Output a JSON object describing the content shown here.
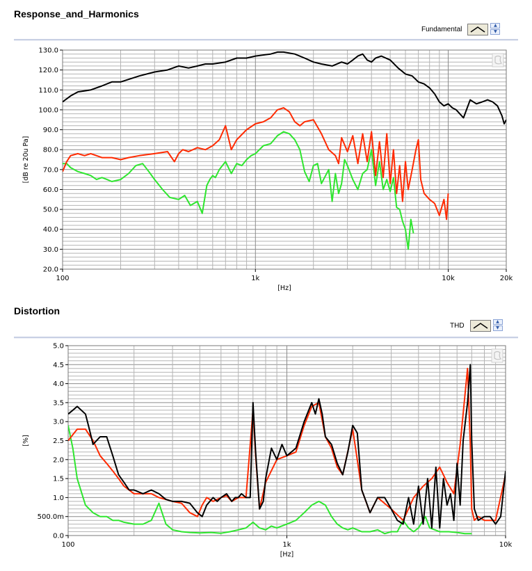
{
  "colors": {
    "black": "#000000",
    "red": "#ff2a00",
    "green": "#2ee62e",
    "grid_major": "#8c8c8c",
    "grid_minor": "#b4b4b4"
  },
  "panels": [
    {
      "title": "Response_and_Harmonics",
      "legend_label": "Fundamental",
      "icon": "line-style-icon"
    },
    {
      "title": "Distortion",
      "legend_label": "THD",
      "icon": "line-style-icon"
    }
  ],
  "chart_data": [
    {
      "type": "line",
      "title": "Response_and_Harmonics",
      "xlabel": "[Hz]",
      "ylabel": "[dB re 20u Pa]",
      "x_scale": "log",
      "xlim": [
        100,
        20000
      ],
      "ylim": [
        20,
        130
      ],
      "x_ticks": [
        100,
        1000,
        10000,
        20000
      ],
      "x_tick_labels": [
        "100",
        "1k",
        "10k",
        "20k"
      ],
      "y_ticks": [
        20,
        30,
        40,
        50,
        60,
        70,
        80,
        90,
        100,
        110,
        120,
        130
      ],
      "y_tick_labels": [
        "20.0",
        "30.0",
        "40.0",
        "50.0",
        "60.0",
        "70.0",
        "80.0",
        "90.0",
        "100.0",
        "110.0",
        "120.0",
        "130.0"
      ],
      "grid": true,
      "legend": [
        "Fundamental"
      ],
      "series": [
        {
          "color": "#000000",
          "x": [
            100,
            110,
            120,
            140,
            160,
            180,
            200,
            250,
            300,
            350,
            400,
            450,
            500,
            550,
            600,
            700,
            800,
            900,
            1000,
            1200,
            1300,
            1400,
            1600,
            1800,
            2000,
            2200,
            2500,
            2800,
            3000,
            3200,
            3400,
            3600,
            3800,
            4000,
            4200,
            4500,
            5000,
            5500,
            6000,
            6500,
            7000,
            7500,
            8000,
            8500,
            9000,
            9500,
            10000,
            10500,
            11000,
            12000,
            13000,
            14000,
            15000,
            16000,
            17000,
            18000,
            19000,
            19500,
            20000
          ],
          "y": [
            104,
            107,
            109,
            110,
            112,
            114,
            114,
            117,
            119,
            120,
            122,
            121,
            122,
            123,
            123,
            124,
            126,
            126,
            127,
            128,
            129,
            129,
            128,
            126,
            124,
            123,
            122,
            124,
            123,
            125,
            127,
            128,
            125,
            124,
            126,
            127,
            125,
            121,
            118,
            117,
            114,
            113,
            111,
            108,
            104,
            102,
            103,
            101,
            100,
            96,
            105,
            103,
            104,
            105,
            104,
            102,
            97,
            93,
            95
          ]
        },
        {
          "color": "#ff2a00",
          "x": [
            100,
            105,
            110,
            120,
            130,
            140,
            150,
            160,
            180,
            200,
            220,
            250,
            300,
            350,
            380,
            400,
            420,
            450,
            500,
            550,
            600,
            650,
            700,
            750,
            800,
            900,
            1000,
            1100,
            1200,
            1300,
            1400,
            1500,
            1600,
            1700,
            1800,
            2000,
            2200,
            2400,
            2600,
            2700,
            2800,
            3000,
            3200,
            3400,
            3600,
            3800,
            4000,
            4200,
            4400,
            4600,
            4800,
            5000,
            5200,
            5400,
            5600,
            5800,
            6000,
            6200,
            6500,
            6800,
            7000,
            7200,
            7500,
            8000,
            8500,
            9000,
            9500,
            9800,
            10000
          ],
          "y": [
            69,
            74,
            77,
            78,
            77,
            78,
            77,
            76,
            76,
            75,
            76,
            77,
            78,
            79,
            74,
            78,
            80,
            79,
            81,
            80,
            82,
            85,
            92,
            80,
            85,
            90,
            93,
            94,
            96,
            100,
            101,
            99,
            94,
            92,
            94,
            95,
            88,
            80,
            77,
            73,
            86,
            79,
            87,
            73,
            88,
            74,
            89,
            67,
            84,
            66,
            88,
            63,
            80,
            58,
            72,
            54,
            74,
            60,
            70,
            80,
            85,
            65,
            58,
            55,
            53,
            47,
            55,
            45,
            58
          ]
        },
        {
          "color": "#2ee62e",
          "x": [
            100,
            105,
            110,
            120,
            130,
            140,
            150,
            160,
            170,
            180,
            200,
            220,
            240,
            260,
            280,
            300,
            330,
            360,
            400,
            430,
            460,
            500,
            530,
            560,
            580,
            600,
            620,
            650,
            700,
            750,
            800,
            850,
            900,
            950,
            1000,
            1100,
            1200,
            1300,
            1400,
            1500,
            1600,
            1700,
            1800,
            1900,
            2000,
            2100,
            2200,
            2400,
            2500,
            2600,
            2700,
            2800,
            2900,
            3000,
            3200,
            3400,
            3600,
            3800,
            4000,
            4200,
            4400,
            4600,
            4800,
            5000,
            5200,
            5400,
            5600,
            5800,
            6000,
            6200,
            6400,
            6600
          ],
          "y": [
            73,
            73,
            71,
            69,
            68,
            67,
            65,
            66,
            65,
            64,
            65,
            68,
            72,
            73,
            69,
            65,
            60,
            56,
            55,
            57,
            52,
            54,
            48,
            62,
            65,
            67,
            66,
            70,
            74,
            68,
            73,
            72,
            75,
            77,
            78,
            82,
            83,
            87,
            89,
            88,
            85,
            80,
            69,
            64,
            72,
            73,
            63,
            70,
            54,
            68,
            58,
            63,
            75,
            72,
            65,
            60,
            68,
            70,
            80,
            62,
            74,
            60,
            65,
            59,
            66,
            51,
            50,
            44,
            40,
            30,
            45,
            38
          ]
        }
      ]
    },
    {
      "type": "line",
      "title": "Distortion",
      "xlabel": "[Hz]",
      "ylabel": "[%]",
      "x_scale": "log",
      "xlim": [
        100,
        10000
      ],
      "ylim": [
        0,
        5
      ],
      "x_ticks": [
        100,
        1000,
        10000
      ],
      "x_tick_labels": [
        "100",
        "1k",
        "10k"
      ],
      "y_ticks": [
        0,
        0.5,
        1.0,
        1.5,
        2.0,
        2.5,
        3.0,
        3.5,
        4.0,
        4.5,
        5.0
      ],
      "y_tick_labels": [
        "0.0",
        "500.0m",
        "1.0",
        "1.5",
        "2.0",
        "2.5",
        "3.0",
        "3.5",
        "4.0",
        "4.5",
        "5.0"
      ],
      "grid": true,
      "legend": [
        "THD"
      ],
      "series": [
        {
          "color": "#000000",
          "x": [
            100,
            105,
            110,
            120,
            125,
            130,
            140,
            150,
            160,
            170,
            180,
            190,
            200,
            220,
            240,
            260,
            280,
            300,
            330,
            360,
            390,
            410,
            430,
            460,
            480,
            500,
            530,
            560,
            580,
            600,
            620,
            650,
            680,
            700,
            720,
            750,
            780,
            800,
            850,
            900,
            950,
            1000,
            1100,
            1200,
            1300,
            1350,
            1400,
            1450,
            1500,
            1600,
            1700,
            1800,
            1900,
            2000,
            2100,
            2200,
            2300,
            2400,
            2600,
            2800,
            3000,
            3200,
            3400,
            3600,
            3800,
            4000,
            4200,
            4400,
            4600,
            4800,
            5000,
            5200,
            5400,
            5600,
            5800,
            6000,
            6200,
            6400,
            6700,
            6900,
            7000,
            7200,
            7500,
            8000,
            8500,
            9000,
            9500,
            10000
          ],
          "y": [
            3.2,
            3.3,
            3.4,
            3.2,
            2.8,
            2.4,
            2.6,
            2.6,
            2.1,
            1.6,
            1.4,
            1.2,
            1.2,
            1.1,
            1.2,
            1.1,
            0.95,
            0.9,
            0.9,
            0.85,
            0.6,
            0.5,
            0.8,
            1.0,
            0.9,
            1.0,
            1.1,
            0.9,
            1.0,
            1.0,
            1.1,
            1.0,
            1.0,
            3.5,
            2.2,
            0.7,
            0.9,
            1.5,
            2.3,
            2.0,
            2.4,
            2.1,
            2.3,
            3.0,
            3.5,
            3.2,
            3.6,
            3.2,
            2.6,
            2.4,
            1.9,
            1.6,
            2.2,
            2.9,
            2.7,
            1.2,
            0.9,
            0.6,
            1.0,
            1.0,
            0.7,
            0.4,
            0.3,
            1.0,
            0.3,
            1.3,
            0.3,
            1.5,
            0.2,
            1.8,
            0.2,
            1.5,
            0.8,
            1.1,
            0.4,
            1.9,
            0.8,
            2.5,
            3.5,
            4.5,
            2.5,
            0.7,
            0.4,
            0.5,
            0.5,
            0.3,
            0.5,
            1.7
          ]
        },
        {
          "color": "#ff2a00",
          "x": [
            100,
            110,
            120,
            130,
            140,
            150,
            160,
            170,
            180,
            200,
            220,
            240,
            260,
            280,
            300,
            330,
            360,
            390,
            410,
            430,
            460,
            500,
            530,
            560,
            600,
            650,
            700,
            720,
            750,
            800,
            900,
            1000,
            1100,
            1200,
            1300,
            1400,
            1500,
            1600,
            1700,
            1800,
            2000,
            2200,
            2400,
            2600,
            3000,
            3400,
            3800,
            4200,
            4600,
            5000,
            5400,
            5800,
            6200,
            6700,
            6900,
            7000,
            7200,
            7500,
            8000,
            9000,
            10000
          ],
          "y": [
            2.5,
            2.8,
            2.8,
            2.5,
            2.1,
            1.9,
            1.7,
            1.5,
            1.3,
            1.1,
            1.1,
            1.1,
            1.0,
            0.95,
            0.9,
            0.85,
            0.6,
            0.5,
            0.8,
            1.0,
            0.9,
            1.0,
            1.05,
            0.9,
            1.0,
            1.0,
            3.3,
            2.1,
            0.7,
            1.4,
            2.0,
            2.1,
            2.2,
            2.9,
            3.4,
            3.5,
            2.6,
            2.3,
            1.8,
            1.6,
            2.8,
            1.2,
            0.6,
            1.0,
            0.7,
            0.4,
            1.0,
            1.3,
            1.5,
            1.8,
            1.4,
            1.1,
            2.4,
            4.4,
            2.4,
            0.7,
            0.4,
            0.5,
            0.4,
            0.4,
            1.6
          ]
        },
        {
          "color": "#2ee62e",
          "x": [
            100,
            105,
            110,
            120,
            130,
            140,
            150,
            160,
            170,
            180,
            200,
            220,
            240,
            260,
            280,
            300,
            330,
            360,
            400,
            450,
            500,
            550,
            600,
            650,
            700,
            750,
            800,
            850,
            900,
            1000,
            1100,
            1200,
            1300,
            1400,
            1500,
            1600,
            1700,
            1800,
            1900,
            2000,
            2200,
            2400,
            2600,
            2800,
            3000,
            3200,
            3400,
            3600,
            3800,
            4000,
            4300,
            4500,
            5000,
            5500,
            6000,
            6500,
            7000
          ],
          "y": [
            2.9,
            2.3,
            1.5,
            0.8,
            0.6,
            0.5,
            0.5,
            0.4,
            0.4,
            0.35,
            0.3,
            0.3,
            0.4,
            0.85,
            0.3,
            0.15,
            0.1,
            0.08,
            0.07,
            0.08,
            0.06,
            0.1,
            0.15,
            0.2,
            0.35,
            0.2,
            0.15,
            0.25,
            0.2,
            0.3,
            0.4,
            0.6,
            0.8,
            0.9,
            0.8,
            0.5,
            0.3,
            0.2,
            0.15,
            0.2,
            0.1,
            0.1,
            0.15,
            0.05,
            0.1,
            0.1,
            0.4,
            0.2,
            0.1,
            0.2,
            0.5,
            0.2,
            0.1,
            0.1,
            0.08,
            0.05,
            0.05
          ]
        }
      ]
    }
  ]
}
